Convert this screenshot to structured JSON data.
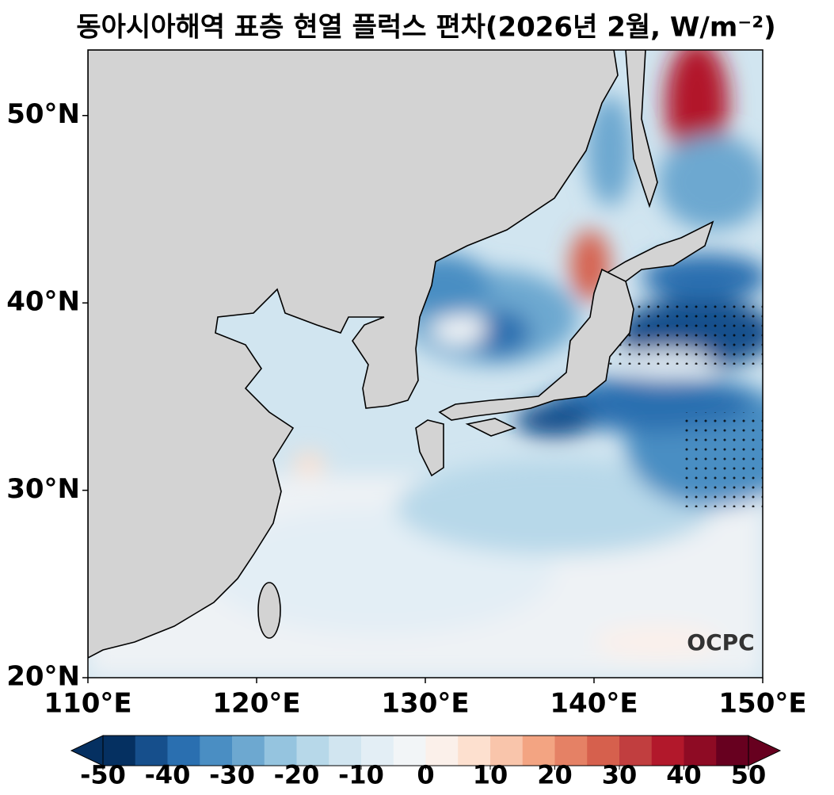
{
  "chart_data": {
    "type": "map",
    "title": "동아시아해역 표층 현열 플럭스 편차(2026년 2월, W/m⁻²)",
    "xlim": [
      110,
      150
    ],
    "ylim": [
      20,
      53.5
    ],
    "xticks": [
      {
        "value": 110,
        "label": "110°E"
      },
      {
        "value": 120,
        "label": "120°E"
      },
      {
        "value": 130,
        "label": "130°E"
      },
      {
        "value": 140,
        "label": "140°E"
      },
      {
        "value": 150,
        "label": "150°E"
      }
    ],
    "yticks": [
      {
        "value": 20,
        "label": "20°N"
      },
      {
        "value": 30,
        "label": "30°N"
      },
      {
        "value": 40,
        "label": "40°N"
      },
      {
        "value": 50,
        "label": "50°N"
      }
    ],
    "colorbar": {
      "levels": [
        -50,
        -45,
        -40,
        -35,
        -30,
        -25,
        -20,
        -15,
        -10,
        -5,
        0,
        5,
        10,
        15,
        20,
        25,
        30,
        35,
        40,
        45,
        50
      ],
      "colors": [
        "#053061",
        "#164f8c",
        "#2a6fb0",
        "#4a8ec3",
        "#6da8d0",
        "#95c4df",
        "#b7d8e9",
        "#d1e5f0",
        "#e3eef5",
        "#f2f5f7",
        "#fbf0ea",
        "#fde0cf",
        "#f9c5ab",
        "#f3a482",
        "#e58165",
        "#d6604d",
        "#c13e3f",
        "#b2182b",
        "#8e0b24",
        "#67001f"
      ],
      "ticks": [
        -50,
        -40,
        -30,
        -20,
        -10,
        0,
        10,
        20,
        30,
        40,
        50
      ],
      "extend": "both"
    },
    "logo": "OCPC"
  }
}
